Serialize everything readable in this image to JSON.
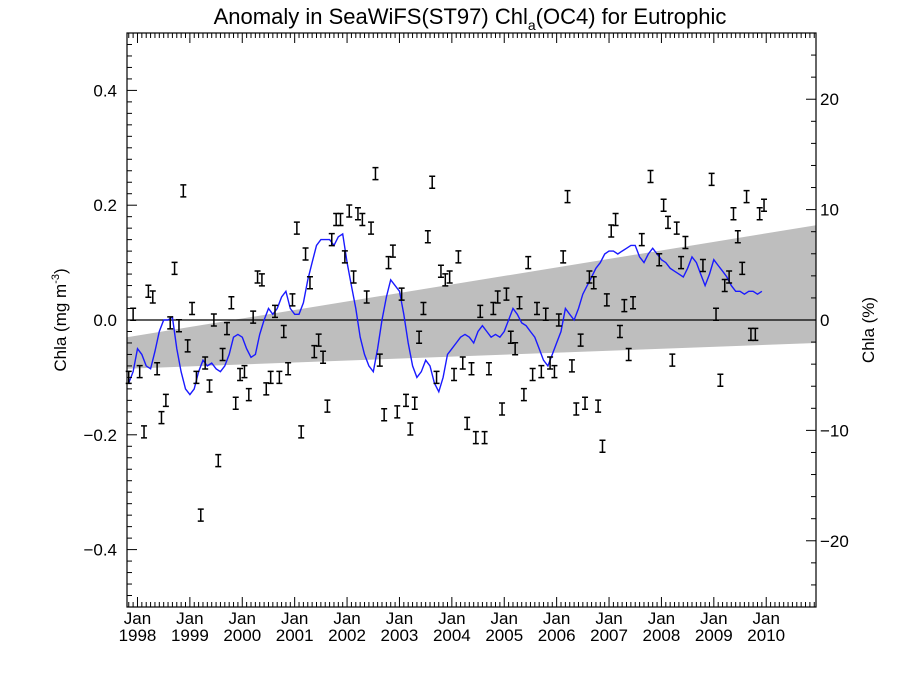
{
  "chart_data": {
    "type": "scatter",
    "title": "Anomaly in SeaWiFS(ST97) Chl",
    "title_subscript": "a",
    "title_suffix": "(OC4) for Eutrophic",
    "ylabel_left": "Chla (mg m",
    "ylabel_left_sup": "-3",
    "ylabel_left_close": ")",
    "ylabel_right": "Chla (%)",
    "xlim": [
      1997.8,
      2010.95
    ],
    "ylim": [
      -0.5,
      0.5
    ],
    "y2lim": [
      -26,
      26
    ],
    "x_ticks": [
      {
        "value": 1998,
        "month": "Jan",
        "year": "1998"
      },
      {
        "value": 1999,
        "month": "Jan",
        "year": "1999"
      },
      {
        "value": 2000,
        "month": "Jan",
        "year": "2000"
      },
      {
        "value": 2001,
        "month": "Jan",
        "year": "2001"
      },
      {
        "value": 2002,
        "month": "Jan",
        "year": "2002"
      },
      {
        "value": 2003,
        "month": "Jan",
        "year": "2003"
      },
      {
        "value": 2004,
        "month": "Jan",
        "year": "2004"
      },
      {
        "value": 2005,
        "month": "Jan",
        "year": "2005"
      },
      {
        "value": 2006,
        "month": "Jan",
        "year": "2006"
      },
      {
        "value": 2007,
        "month": "Jan",
        "year": "2007"
      },
      {
        "value": 2008,
        "month": "Jan",
        "year": "2008"
      },
      {
        "value": 2009,
        "month": "Jan",
        "year": "2009"
      },
      {
        "value": 2010,
        "month": "Jan",
        "year": "2010"
      }
    ],
    "y_ticks_left": [
      {
        "value": 0.4,
        "label": "0.4"
      },
      {
        "value": 0.2,
        "label": "0.2"
      },
      {
        "value": 0.0,
        "label": "0.0"
      },
      {
        "value": -0.2,
        "label": "−0.2"
      },
      {
        "value": -0.4,
        "label": "−0.4"
      }
    ],
    "y_ticks_right": [
      {
        "value": 20,
        "label": "20"
      },
      {
        "value": 10,
        "label": "10"
      },
      {
        "value": 0,
        "label": "0"
      },
      {
        "value": -10,
        "label": "−10"
      },
      {
        "value": -20,
        "label": "−20"
      }
    ],
    "trend_band": {
      "x": [
        1997.8,
        2010.95
      ],
      "upper": [
        -0.03,
        0.165
      ],
      "lower": [
        -0.085,
        -0.04
      ]
    },
    "zero_line": 0,
    "colors": {
      "line": "#1a1aff",
      "band": "#bebebe",
      "points": "#000000",
      "axes": "#000000"
    },
    "monthly_anomalies": [
      {
        "x": 1997.833,
        "y": -0.1
      },
      {
        "x": 1997.917,
        "y": 0.01
      },
      {
        "x": 1998.042,
        "y": -0.09
      },
      {
        "x": 1998.125,
        "y": -0.195
      },
      {
        "x": 1998.208,
        "y": 0.05
      },
      {
        "x": 1998.292,
        "y": 0.04
      },
      {
        "x": 1998.375,
        "y": -0.085
      },
      {
        "x": 1998.458,
        "y": -0.17
      },
      {
        "x": 1998.542,
        "y": -0.14
      },
      {
        "x": 1998.625,
        "y": -0.005
      },
      {
        "x": 1998.708,
        "y": 0.09
      },
      {
        "x": 1998.792,
        "y": -0.01
      },
      {
        "x": 1998.875,
        "y": 0.225
      },
      {
        "x": 1998.958,
        "y": -0.045
      },
      {
        "x": 1999.042,
        "y": 0.02
      },
      {
        "x": 1999.125,
        "y": -0.1
      },
      {
        "x": 1999.208,
        "y": -0.34
      },
      {
        "x": 1999.292,
        "y": -0.075
      },
      {
        "x": 1999.375,
        "y": -0.115
      },
      {
        "x": 1999.458,
        "y": 0.0
      },
      {
        "x": 1999.542,
        "y": -0.245
      },
      {
        "x": 1999.625,
        "y": -0.06
      },
      {
        "x": 1999.708,
        "y": -0.015
      },
      {
        "x": 1999.792,
        "y": 0.03
      },
      {
        "x": 1999.875,
        "y": -0.145
      },
      {
        "x": 1999.958,
        "y": -0.095
      },
      {
        "x": 2000.042,
        "y": -0.09
      },
      {
        "x": 2000.125,
        "y": -0.13
      },
      {
        "x": 2000.208,
        "y": 0.005
      },
      {
        "x": 2000.292,
        "y": 0.075
      },
      {
        "x": 2000.375,
        "y": 0.07
      },
      {
        "x": 2000.458,
        "y": -0.12
      },
      {
        "x": 2000.542,
        "y": -0.1
      },
      {
        "x": 2000.625,
        "y": 0.015
      },
      {
        "x": 2000.708,
        "y": -0.1
      },
      {
        "x": 2000.792,
        "y": -0.02
      },
      {
        "x": 2000.875,
        "y": -0.085
      },
      {
        "x": 2000.958,
        "y": 0.035
      },
      {
        "x": 2001.042,
        "y": 0.16
      },
      {
        "x": 2001.125,
        "y": -0.195
      },
      {
        "x": 2001.208,
        "y": 0.115
      },
      {
        "x": 2001.292,
        "y": 0.065
      },
      {
        "x": 2001.375,
        "y": -0.055
      },
      {
        "x": 2001.458,
        "y": -0.035
      },
      {
        "x": 2001.542,
        "y": -0.065
      },
      {
        "x": 2001.625,
        "y": -0.15
      },
      {
        "x": 2001.708,
        "y": 0.14
      },
      {
        "x": 2001.792,
        "y": 0.175
      },
      {
        "x": 2001.875,
        "y": 0.175
      },
      {
        "x": 2001.958,
        "y": 0.11
      },
      {
        "x": 2002.042,
        "y": 0.19
      },
      {
        "x": 2002.125,
        "y": 0.075
      },
      {
        "x": 2002.208,
        "y": 0.185
      },
      {
        "x": 2002.292,
        "y": 0.175
      },
      {
        "x": 2002.375,
        "y": 0.04
      },
      {
        "x": 2002.458,
        "y": 0.16
      },
      {
        "x": 2002.542,
        "y": 0.255
      },
      {
        "x": 2002.625,
        "y": -0.07
      },
      {
        "x": 2002.708,
        "y": -0.165
      },
      {
        "x": 2002.792,
        "y": 0.1
      },
      {
        "x": 2002.875,
        "y": 0.12
      },
      {
        "x": 2002.958,
        "y": -0.16
      },
      {
        "x": 2003.042,
        "y": 0.045
      },
      {
        "x": 2003.125,
        "y": -0.14
      },
      {
        "x": 2003.208,
        "y": -0.19
      },
      {
        "x": 2003.292,
        "y": -0.145
      },
      {
        "x": 2003.375,
        "y": -0.03
      },
      {
        "x": 2003.458,
        "y": 0.02
      },
      {
        "x": 2003.542,
        "y": 0.145
      },
      {
        "x": 2003.625,
        "y": 0.24
      },
      {
        "x": 2003.708,
        "y": -0.1
      },
      {
        "x": 2003.792,
        "y": 0.085
      },
      {
        "x": 2003.875,
        "y": 0.07
      },
      {
        "x": 2003.958,
        "y": 0.075
      },
      {
        "x": 2004.042,
        "y": -0.095
      },
      {
        "x": 2004.125,
        "y": 0.11
      },
      {
        "x": 2004.208,
        "y": -0.075
      },
      {
        "x": 2004.292,
        "y": -0.18
      },
      {
        "x": 2004.375,
        "y": -0.085
      },
      {
        "x": 2004.458,
        "y": -0.205
      },
      {
        "x": 2004.542,
        "y": 0.015
      },
      {
        "x": 2004.625,
        "y": -0.205
      },
      {
        "x": 2004.708,
        "y": -0.085
      },
      {
        "x": 2004.792,
        "y": 0.02
      },
      {
        "x": 2004.875,
        "y": 0.04
      },
      {
        "x": 2004.958,
        "y": -0.155
      },
      {
        "x": 2005.042,
        "y": 0.045
      },
      {
        "x": 2005.125,
        "y": -0.03
      },
      {
        "x": 2005.208,
        "y": -0.05
      },
      {
        "x": 2005.292,
        "y": 0.03
      },
      {
        "x": 2005.375,
        "y": -0.13
      },
      {
        "x": 2005.458,
        "y": 0.1
      },
      {
        "x": 2005.542,
        "y": -0.095
      },
      {
        "x": 2005.625,
        "y": 0.02
      },
      {
        "x": 2005.708,
        "y": -0.09
      },
      {
        "x": 2005.792,
        "y": 0.01
      },
      {
        "x": 2005.875,
        "y": -0.075
      },
      {
        "x": 2005.958,
        "y": -0.09
      },
      {
        "x": 2006.042,
        "y": 0.0
      },
      {
        "x": 2006.125,
        "y": 0.11
      },
      {
        "x": 2006.208,
        "y": 0.215
      },
      {
        "x": 2006.292,
        "y": -0.08
      },
      {
        "x": 2006.375,
        "y": -0.155
      },
      {
        "x": 2006.458,
        "y": -0.035
      },
      {
        "x": 2006.542,
        "y": -0.145
      },
      {
        "x": 2006.625,
        "y": 0.075
      },
      {
        "x": 2006.708,
        "y": 0.065
      },
      {
        "x": 2006.792,
        "y": -0.15
      },
      {
        "x": 2006.875,
        "y": -0.22
      },
      {
        "x": 2006.958,
        "y": 0.035
      },
      {
        "x": 2007.042,
        "y": 0.155
      },
      {
        "x": 2007.125,
        "y": 0.175
      },
      {
        "x": 2007.208,
        "y": -0.02
      },
      {
        "x": 2007.292,
        "y": 0.025
      },
      {
        "x": 2007.375,
        "y": -0.06
      },
      {
        "x": 2007.458,
        "y": 0.03
      },
      {
        "x": 2007.625,
        "y": 0.14
      },
      {
        "x": 2007.792,
        "y": 0.25
      },
      {
        "x": 2007.958,
        "y": 0.105
      },
      {
        "x": 2008.042,
        "y": 0.2
      },
      {
        "x": 2008.125,
        "y": 0.17
      },
      {
        "x": 2008.208,
        "y": -0.07
      },
      {
        "x": 2008.292,
        "y": 0.16
      },
      {
        "x": 2008.375,
        "y": 0.1
      },
      {
        "x": 2008.458,
        "y": 0.135
      },
      {
        "x": 2008.792,
        "y": 0.095
      },
      {
        "x": 2008.958,
        "y": 0.245
      },
      {
        "x": 2009.042,
        "y": 0.01
      },
      {
        "x": 2009.125,
        "y": -0.105
      },
      {
        "x": 2009.208,
        "y": 0.06
      },
      {
        "x": 2009.292,
        "y": 0.075
      },
      {
        "x": 2009.375,
        "y": 0.185
      },
      {
        "x": 2009.458,
        "y": 0.145
      },
      {
        "x": 2009.542,
        "y": 0.09
      },
      {
        "x": 2009.625,
        "y": 0.215
      },
      {
        "x": 2009.708,
        "y": -0.025
      },
      {
        "x": 2009.792,
        "y": -0.025
      },
      {
        "x": 2009.875,
        "y": 0.185
      },
      {
        "x": 2009.958,
        "y": 0.2
      }
    ],
    "running_mean": {
      "x": [
        1997.833,
        1997.917,
        1998.0,
        1998.083,
        1998.167,
        1998.25,
        1998.333,
        1998.417,
        1998.5,
        1998.583,
        1998.667,
        1998.75,
        1998.833,
        1998.917,
        1999.0,
        1999.083,
        1999.167,
        1999.25,
        1999.333,
        1999.417,
        1999.5,
        1999.583,
        1999.667,
        1999.75,
        1999.833,
        1999.917,
        2000.0,
        2000.083,
        2000.167,
        2000.25,
        2000.333,
        2000.417,
        2000.5,
        2000.583,
        2000.667,
        2000.75,
        2000.833,
        2000.917,
        2001.0,
        2001.083,
        2001.167,
        2001.25,
        2001.333,
        2001.417,
        2001.5,
        2001.583,
        2001.667,
        2001.75,
        2001.833,
        2001.917,
        2002.0,
        2002.083,
        2002.167,
        2002.25,
        2002.333,
        2002.417,
        2002.5,
        2002.583,
        2002.667,
        2002.75,
        2002.833,
        2002.917,
        2003.0,
        2003.083,
        2003.167,
        2003.25,
        2003.333,
        2003.417,
        2003.5,
        2003.583,
        2003.667,
        2003.75,
        2003.833,
        2003.917,
        2004.0,
        2004.083,
        2004.167,
        2004.25,
        2004.333,
        2004.417,
        2004.5,
        2004.583,
        2004.667,
        2004.75,
        2004.833,
        2004.917,
        2005.0,
        2005.083,
        2005.167,
        2005.25,
        2005.333,
        2005.417,
        2005.5,
        2005.583,
        2005.667,
        2005.75,
        2005.833,
        2005.917,
        2006.0,
        2006.083,
        2006.167,
        2006.25,
        2006.333,
        2006.417,
        2006.5,
        2006.583,
        2006.667,
        2006.75,
        2006.833,
        2006.917,
        2007.0,
        2007.083,
        2007.167,
        2007.25,
        2007.333,
        2007.417,
        2007.5,
        2007.583,
        2007.667,
        2007.75,
        2007.833,
        2007.917,
        2008.0,
        2008.083,
        2008.167,
        2008.25,
        2008.333,
        2008.417,
        2008.5,
        2008.583,
        2008.667,
        2008.75,
        2008.833,
        2008.917,
        2009.0,
        2009.083,
        2009.167,
        2009.25,
        2009.333,
        2009.417,
        2009.5,
        2009.583,
        2009.667,
        2009.75,
        2009.833,
        2009.917
      ],
      "y": [
        -0.11,
        -0.09,
        -0.05,
        -0.06,
        -0.08,
        -0.085,
        -0.055,
        -0.02,
        0.0,
        0.0,
        0.005,
        -0.05,
        -0.09,
        -0.12,
        -0.13,
        -0.12,
        -0.09,
        -0.07,
        -0.08,
        -0.075,
        -0.085,
        -0.09,
        -0.08,
        -0.06,
        -0.03,
        -0.025,
        -0.03,
        -0.05,
        -0.065,
        -0.06,
        -0.025,
        0.0,
        0.02,
        0.01,
        0.02,
        0.04,
        0.05,
        0.02,
        0.01,
        0.01,
        0.03,
        0.07,
        0.1,
        0.13,
        0.14,
        0.14,
        0.14,
        0.13,
        0.145,
        0.15,
        0.1,
        0.06,
        0.02,
        -0.03,
        -0.06,
        -0.08,
        -0.09,
        -0.05,
        0.0,
        0.04,
        0.07,
        0.06,
        0.05,
        0.01,
        -0.04,
        -0.08,
        -0.1,
        -0.09,
        -0.07,
        -0.08,
        -0.11,
        -0.125,
        -0.1,
        -0.06,
        -0.05,
        -0.04,
        -0.03,
        -0.025,
        -0.03,
        -0.04,
        -0.02,
        -0.01,
        -0.02,
        -0.03,
        -0.025,
        -0.03,
        -0.02,
        0.0,
        0.02,
        0.01,
        -0.005,
        -0.01,
        -0.02,
        -0.03,
        -0.05,
        -0.07,
        -0.08,
        -0.06,
        -0.04,
        -0.02,
        0.02,
        0.01,
        0.0,
        0.02,
        0.045,
        0.06,
        0.075,
        0.09,
        0.1,
        0.115,
        0.12,
        0.12,
        0.115,
        0.12,
        0.125,
        0.13,
        0.13,
        0.11,
        0.1,
        0.115,
        0.125,
        0.115,
        0.105,
        0.1,
        0.09,
        0.085,
        0.08,
        0.075,
        0.09,
        0.11,
        0.1,
        0.08,
        0.06,
        0.08,
        0.105,
        0.095,
        0.085,
        0.075,
        0.06,
        0.05,
        0.05,
        0.045,
        0.05,
        0.05,
        0.045,
        0.05
      ]
    }
  }
}
